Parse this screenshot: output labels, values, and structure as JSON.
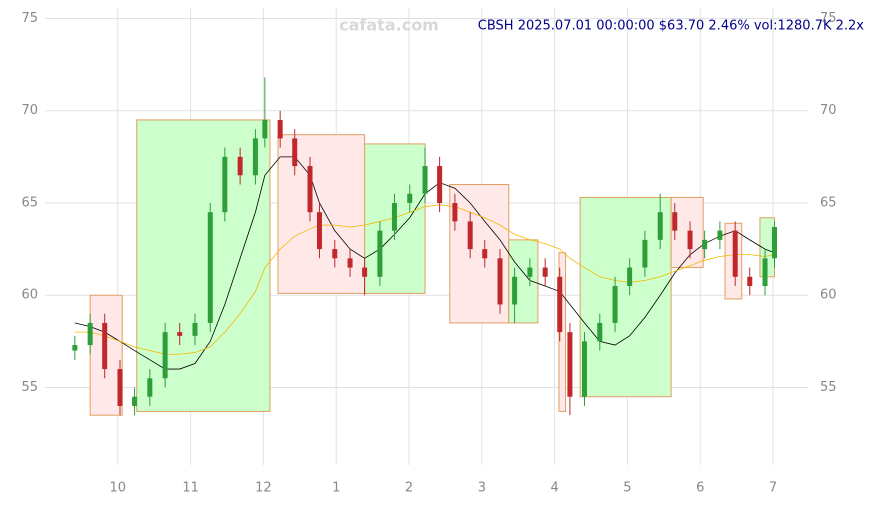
{
  "chart_data": {
    "type": "candlestick",
    "title": "CBSH 2025.07.01 00:00:00 $63.70 2.46% vol:1280.7K 2.2x",
    "watermark": "cafata.com",
    "xlim": [
      9,
      19.48
    ],
    "ylim": [
      50.8,
      76
    ],
    "xticks": [
      {
        "value": 10,
        "label": "10"
      },
      {
        "value": 11,
        "label": "11"
      },
      {
        "value": 12,
        "label": "12"
      },
      {
        "value": 13,
        "label": "1"
      },
      {
        "value": 14,
        "label": "2"
      },
      {
        "value": 15,
        "label": "3"
      },
      {
        "value": 16,
        "label": "4"
      },
      {
        "value": 17,
        "label": "5"
      },
      {
        "value": 18,
        "label": "6"
      },
      {
        "value": 19,
        "label": "7"
      }
    ],
    "yticks": [
      55,
      60,
      65,
      70,
      75
    ],
    "grid": true,
    "up_color": "#2e9e3a",
    "down_color": "#c0282c",
    "x": [
      9.41,
      9.62,
      9.82,
      10.03,
      10.23,
      10.44,
      10.65,
      10.85,
      11.06,
      11.27,
      11.47,
      11.68,
      11.89,
      12.02,
      12.23,
      12.43,
      12.64,
      12.77,
      12.98,
      13.19,
      13.39,
      13.6,
      13.8,
      14.01,
      14.22,
      14.42,
      14.63,
      14.84,
      15.04,
      15.25,
      15.45,
      15.66,
      15.87,
      16.07,
      16.21,
      16.41,
      16.62,
      16.83,
      17.03,
      17.24,
      17.45,
      17.65,
      17.86,
      18.06,
      18.27,
      18.48,
      18.68,
      18.89,
      19.02
    ],
    "open": [
      57,
      57.3,
      58.5,
      56,
      54,
      54.5,
      55.5,
      58,
      57.8,
      58.5,
      64.5,
      67.5,
      66.5,
      68.5,
      69.5,
      68.5,
      67,
      64.5,
      62.5,
      62,
      61.5,
      61,
      63.5,
      65,
      65.5,
      67,
      65,
      64,
      62.5,
      62,
      59.5,
      61,
      61.5,
      61,
      58,
      54.5,
      57.5,
      58.5,
      60.5,
      61.5,
      63,
      64.5,
      63.5,
      62.5,
      63,
      63.5,
      61,
      60.5,
      62
    ],
    "high": [
      57.8,
      59,
      59,
      56.5,
      55,
      56,
      58.5,
      58.5,
      59,
      65,
      68,
      68,
      69,
      71.8,
      70,
      69,
      67.5,
      65,
      63,
      62.5,
      62,
      64,
      65.5,
      66,
      68,
      67.5,
      65.5,
      64.5,
      63,
      62.5,
      61.5,
      62,
      62,
      61.5,
      58.5,
      58,
      59,
      61,
      62,
      63.5,
      65.5,
      65,
      64,
      63.5,
      64,
      64,
      61.5,
      62.5,
      64
    ],
    "low": [
      56.5,
      56.8,
      55.5,
      53.5,
      53.5,
      54,
      55,
      57.3,
      57.3,
      58,
      64,
      66,
      66,
      68,
      68,
      66.5,
      64,
      62,
      61.5,
      61,
      60,
      60.5,
      63,
      64.5,
      65,
      64.5,
      63.5,
      62,
      61.5,
      59,
      58.5,
      60.5,
      60.5,
      57.5,
      53.5,
      54,
      57,
      58,
      60,
      61,
      62.5,
      63,
      62,
      62,
      62.5,
      60.5,
      60,
      60,
      61.5
    ],
    "close": [
      57.3,
      58.5,
      56,
      54,
      54.5,
      55.5,
      58,
      57.8,
      58.5,
      64.5,
      67.5,
      66.5,
      68.5,
      69.5,
      68.5,
      67,
      64.5,
      62.5,
      62,
      61.5,
      61,
      63.5,
      65,
      65.5,
      67,
      65,
      64,
      62.5,
      62,
      59.5,
      61,
      61.5,
      61,
      58,
      54.5,
      57.5,
      58.5,
      60.5,
      61.5,
      63,
      64.5,
      63.5,
      62.5,
      63,
      63.5,
      61,
      60.5,
      62,
      63.7
    ],
    "lines": [
      {
        "color": "#000000",
        "values": [
          58.5,
          58.3,
          58,
          57.5,
          57,
          56.5,
          56,
          56,
          56.3,
          57.5,
          59.5,
          62,
          64.5,
          66.5,
          67.5,
          67.5,
          66.5,
          65,
          63.5,
          62.5,
          62,
          62.5,
          63.3,
          64.2,
          65.5,
          66.1,
          65.8,
          65,
          64,
          63,
          61.8,
          60.8,
          60.5,
          60.2,
          59.5,
          58.5,
          57.5,
          57.3,
          57.8,
          58.8,
          60,
          61.2,
          62.2,
          62.8,
          63.2,
          63.5,
          63,
          62.5,
          62.3
        ]
      },
      {
        "color": "#f5b800",
        "values": [
          58,
          58,
          57.8,
          57.5,
          57.2,
          57,
          56.8,
          56.8,
          56.9,
          57.2,
          58,
          59,
          60.2,
          61.5,
          62.5,
          63.2,
          63.6,
          63.8,
          63.8,
          63.7,
          63.8,
          64,
          64.2,
          64.5,
          64.8,
          64.9,
          64.8,
          64.5,
          64.2,
          63.8,
          63.3,
          63,
          62.8,
          62.5,
          62,
          61.5,
          61,
          60.8,
          60.7,
          60.8,
          61,
          61.3,
          61.6,
          61.9,
          62.1,
          62.2,
          62.2,
          62.1,
          62.2
        ]
      }
    ],
    "boxes": [
      {
        "start": 9.62,
        "end": 10.06,
        "low": 53.5,
        "high": 60,
        "color": "#ffe8e8"
      },
      {
        "start": 10.26,
        "end": 12.09,
        "low": 53.7,
        "high": 69.5,
        "color": "#ccffcc"
      },
      {
        "start": 12.2,
        "end": 13.39,
        "low": 60.1,
        "high": 68.7,
        "color": "#ffe8e8"
      },
      {
        "start": 13.39,
        "end": 14.22,
        "low": 60.1,
        "high": 68.2,
        "color": "#ccffcc"
      },
      {
        "start": 14.56,
        "end": 15.37,
        "low": 58.5,
        "high": 66,
        "color": "#ffe8e8"
      },
      {
        "start": 15.37,
        "end": 15.77,
        "low": 58.5,
        "high": 63,
        "color": "#ccffcc"
      },
      {
        "start": 16.06,
        "end": 16.15,
        "low": 53.7,
        "high": 62.3,
        "color": "#ffe8e8"
      },
      {
        "start": 16.35,
        "end": 17.6,
        "low": 54.5,
        "high": 65.3,
        "color": "#ccffcc"
      },
      {
        "start": 17.6,
        "end": 18.04,
        "low": 61.5,
        "high": 65.3,
        "color": "#ffe8e8"
      },
      {
        "start": 18.34,
        "end": 18.57,
        "low": 59.8,
        "high": 63.9,
        "color": "#ffe8e8"
      },
      {
        "start": 18.82,
        "end": 19.02,
        "low": 61,
        "high": 64.2,
        "color": "#ccffcc"
      }
    ]
  }
}
